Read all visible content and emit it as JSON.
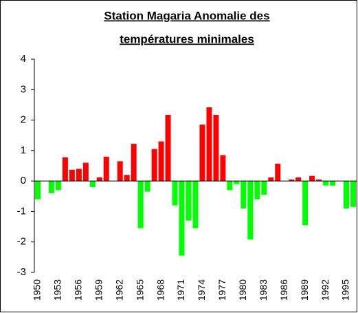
{
  "chart_data": {
    "type": "bar",
    "title": [
      "Station Magaria Anomalie des",
      "températures minimales"
    ],
    "categories": [
      "1950",
      null,
      null,
      "1953",
      null,
      null,
      "1956",
      null,
      null,
      "1959",
      null,
      null,
      "1962",
      null,
      null,
      "1965",
      null,
      null,
      "1968",
      null,
      null,
      "1971",
      null,
      null,
      "1974",
      null,
      null,
      "1977",
      null,
      null,
      "1980",
      null,
      null,
      "1983",
      null,
      null,
      "1986",
      null,
      null,
      "1989",
      null,
      null,
      "1992",
      null,
      null,
      "1995",
      null
    ],
    "values": [
      -0.6,
      0,
      -0.4,
      -0.3,
      0.78,
      0.37,
      0.4,
      0.6,
      -0.2,
      0.12,
      0.8,
      0,
      0.65,
      0.2,
      1.22,
      -1.55,
      -0.35,
      1.05,
      1.3,
      2.17,
      -0.8,
      -2.45,
      -1.3,
      -1.55,
      1.85,
      2.42,
      2.17,
      0.85,
      -0.3,
      -0.1,
      -0.9,
      -1.92,
      -0.6,
      -0.45,
      0.12,
      0.57,
      0,
      0.05,
      0.12,
      -1.45,
      0.17,
      0.05,
      -0.15,
      -0.15,
      0,
      -0.9,
      -0.85
    ],
    "positive_color": "#ff0000",
    "negative_color": "#00ff00",
    "ylim": [
      -3,
      4
    ],
    "yticks": [
      -3,
      -2,
      -1,
      0,
      1,
      2,
      3,
      4
    ],
    "grid": false
  }
}
